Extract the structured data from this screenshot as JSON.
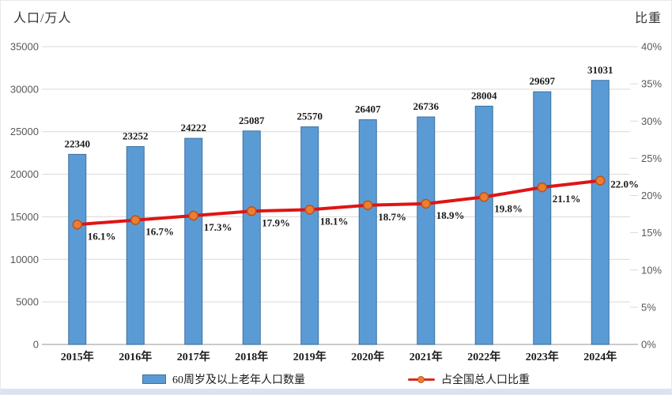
{
  "chart_data": {
    "type": "bar",
    "combo": "bar+line, dual axis",
    "categories": [
      "2015年",
      "2016年",
      "2017年",
      "2018年",
      "2019年",
      "2020年",
      "2021年",
      "2022年",
      "2023年",
      "2024年"
    ],
    "series": [
      {
        "name": "60周岁及以上老年人口数量",
        "type": "bar",
        "axis": "left",
        "values": [
          22340,
          23252,
          24222,
          25087,
          25570,
          26407,
          26736,
          28004,
          29697,
          31031
        ],
        "color": "#5B9BD5",
        "border_color": "#3B719F"
      },
      {
        "name": "占全国总人口比重",
        "type": "line",
        "axis": "right",
        "values": [
          16.1,
          16.7,
          17.3,
          17.9,
          18.1,
          18.7,
          18.9,
          19.8,
          21.1,
          22.0
        ],
        "point_labels": [
          "16.1%",
          "16.7%",
          "17.3%",
          "17.9%",
          "18.1%",
          "18.7%",
          "18.9%",
          "19.8%",
          "21.1%",
          "22.0%"
        ],
        "line_color": "#E01414",
        "marker_fill": "#ED7D31",
        "marker_stroke": "#B9541A"
      }
    ],
    "left_axis": {
      "title": "人口/万人",
      "min": 0,
      "max": 35000,
      "step": 5000,
      "ticks": [
        "35000",
        "30000",
        "25000",
        "20000",
        "15000",
        "10000",
        "5000",
        "0"
      ]
    },
    "right_axis": {
      "title": "比重",
      "min": 0,
      "max": 40,
      "step": 5,
      "ticks": [
        "40%",
        "35%",
        "30%",
        "25%",
        "20%",
        "15%",
        "10%",
        "5%",
        "0%"
      ]
    },
    "grid": true,
    "legend_position": "bottom",
    "grid_color": "#D9D9D9",
    "baseline_color": "#ABABAB"
  }
}
